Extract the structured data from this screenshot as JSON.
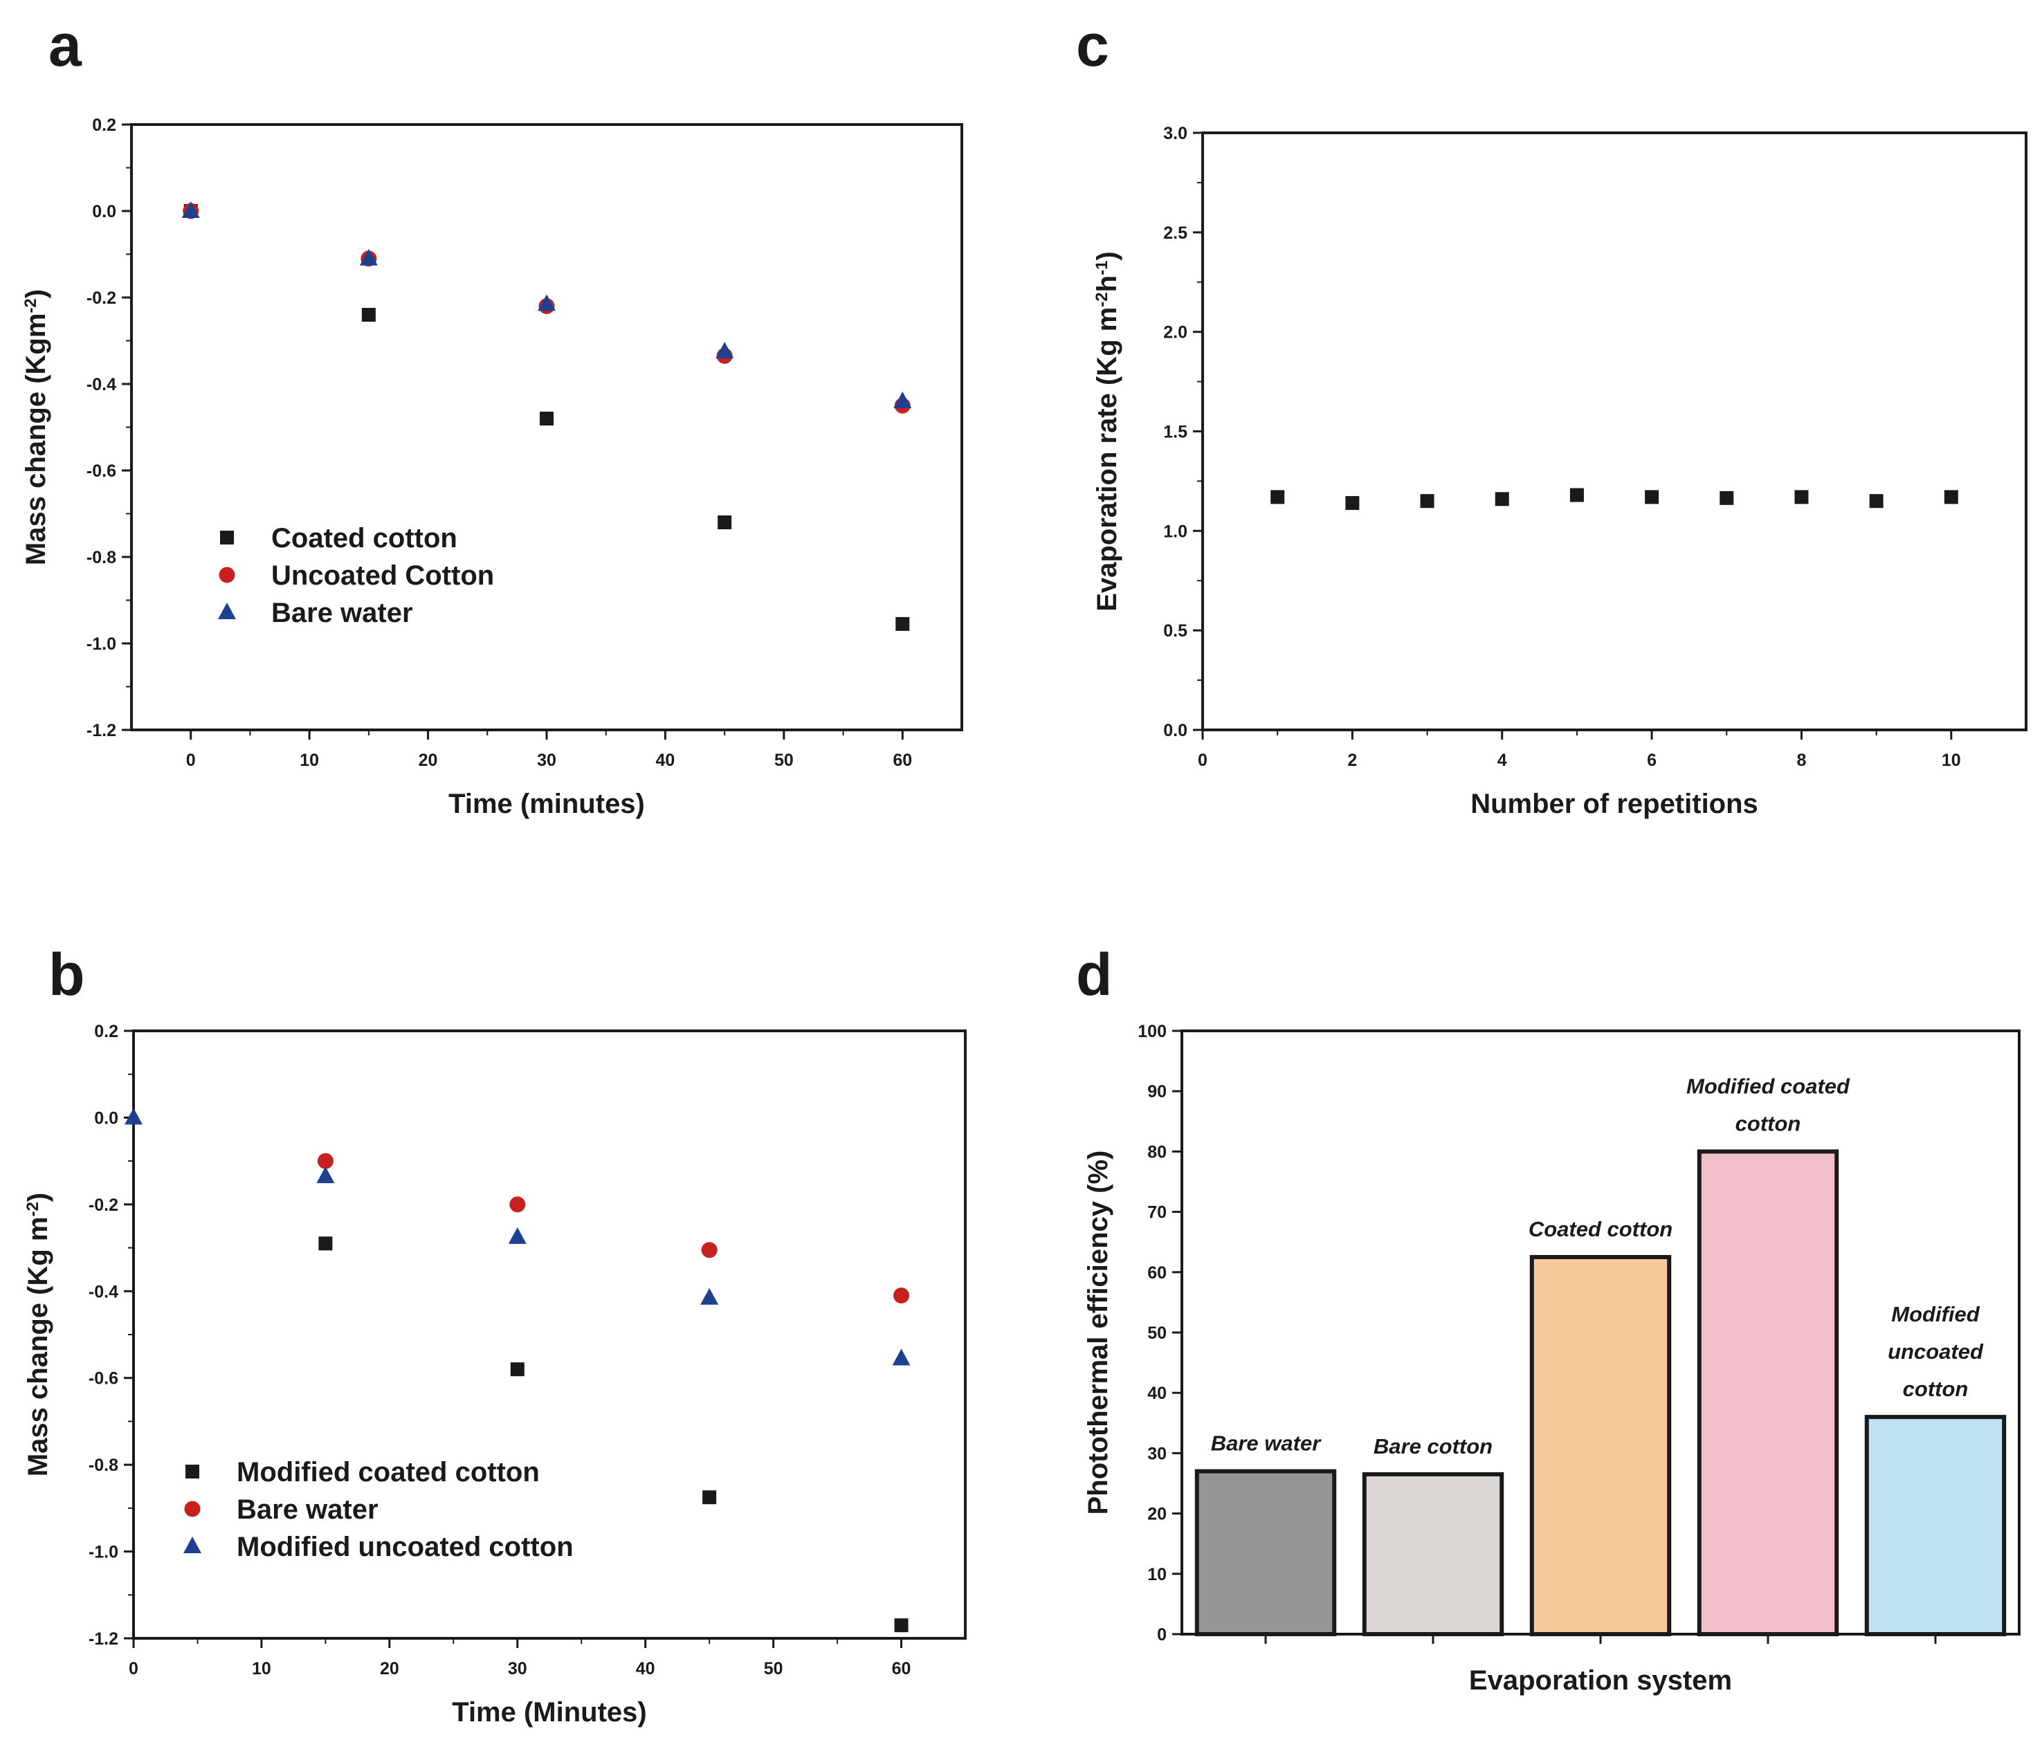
{
  "colors": {
    "black": "#1a1a1a",
    "red": "#c8201e",
    "blue": "#1f3f8f"
  },
  "chart_data": [
    {
      "panel": "a",
      "type": "scatter",
      "xlabel": "Time (minutes)",
      "ylabel": "Mass change (Kgm",
      "ylabel_sup": "-2",
      "ylabel_end": ")",
      "xlim": [
        -5,
        65
      ],
      "ylim": [
        -1.2,
        0.2
      ],
      "xticks": [
        0,
        10,
        20,
        30,
        40,
        50,
        60
      ],
      "yticks": [
        0.2,
        0.0,
        -0.2,
        -0.4,
        -0.6,
        -0.8,
        -1.0,
        -1.2
      ],
      "ytick_labels": [
        "0.2",
        "0.0",
        "-0.2",
        "-0.4",
        "-0.6",
        "-0.8",
        "-1.0",
        "-1.2"
      ],
      "legend_position": "lower-left",
      "series": [
        {
          "name": "Coated cotton",
          "marker": "square",
          "color": "#1a1a1a",
          "x": [
            0,
            15,
            30,
            45,
            60
          ],
          "y": [
            0.0,
            -0.24,
            -0.48,
            -0.72,
            -0.955
          ]
        },
        {
          "name": "Uncoated Cotton",
          "marker": "circle",
          "color": "#c8201e",
          "x": [
            0,
            15,
            30,
            45,
            60
          ],
          "y": [
            0.0,
            -0.11,
            -0.22,
            -0.335,
            -0.45
          ]
        },
        {
          "name": "Bare water",
          "marker": "triangle",
          "color": "#1f3f8f",
          "x": [
            0,
            15,
            30,
            45,
            60
          ],
          "y": [
            0.0,
            -0.11,
            -0.215,
            -0.325,
            -0.44
          ]
        }
      ]
    },
    {
      "panel": "b",
      "type": "scatter",
      "xlabel": "Time (Minutes)",
      "ylabel": "Mass change (Kg m",
      "ylabel_sup": "-2",
      "ylabel_end": ")",
      "xlim": [
        0,
        65
      ],
      "ylim": [
        -1.2,
        0.2
      ],
      "xticks": [
        0,
        10,
        20,
        30,
        40,
        50,
        60
      ],
      "yticks": [
        0.2,
        0.0,
        -0.2,
        -0.4,
        -0.6,
        -0.8,
        -1.0,
        -1.2
      ],
      "ytick_labels": [
        "0.2",
        "0.0",
        "-0.2",
        "-0.4",
        "-0.6",
        "-0.8",
        "-1.0",
        "-1.2"
      ],
      "legend_position": "lower-left",
      "series": [
        {
          "name": "Modified coated cotton",
          "marker": "square",
          "color": "#1a1a1a",
          "x": [
            15,
            30,
            45,
            60
          ],
          "y": [
            -0.29,
            -0.58,
            -0.875,
            -1.17
          ]
        },
        {
          "name": "Bare water",
          "marker": "circle",
          "color": "#c8201e",
          "x": [
            15,
            30,
            45,
            60
          ],
          "y": [
            -0.1,
            -0.2,
            -0.305,
            -0.41
          ]
        },
        {
          "name": "Modified uncoated cotton",
          "marker": "triangle",
          "color": "#1f3f8f",
          "x": [
            0,
            15,
            30,
            45,
            60
          ],
          "y": [
            0.0,
            -0.135,
            -0.275,
            -0.415,
            -0.555
          ]
        }
      ]
    },
    {
      "panel": "c",
      "type": "scatter",
      "xlabel": "Number of repetitions",
      "ylabel": "Evaporation rate (Kg m",
      "ylabel_sup": "-2",
      "ylabel_mid": "h",
      "ylabel_sup2": "-1",
      "ylabel_end": ")",
      "xlim": [
        0,
        11
      ],
      "ylim": [
        0.0,
        3.0
      ],
      "xticks": [
        0,
        2,
        4,
        6,
        8,
        10
      ],
      "yticks": [
        0.0,
        0.5,
        1.0,
        1.5,
        2.0,
        2.5,
        3.0
      ],
      "ytick_labels": [
        "0.0",
        "0.5",
        "1.0",
        "1.5",
        "2.0",
        "2.5",
        "3.0"
      ],
      "series": [
        {
          "name": "Evaporation rate",
          "marker": "square",
          "color": "#1a1a1a",
          "x": [
            1,
            2,
            3,
            4,
            5,
            6,
            7,
            8,
            9,
            10
          ],
          "y": [
            1.17,
            1.14,
            1.15,
            1.16,
            1.18,
            1.17,
            1.165,
            1.17,
            1.15,
            1.17
          ]
        }
      ]
    },
    {
      "panel": "d",
      "type": "bar",
      "xlabel": "Evaporation system",
      "ylabel": "Photothermal efficiency (%)",
      "ylim": [
        0,
        100
      ],
      "yticks": [
        0,
        10,
        20,
        30,
        40,
        50,
        60,
        70,
        80,
        90,
        100
      ],
      "categories": [
        "Bare water",
        "Bare cotton",
        "Coated cotton",
        "Modified coated cotton",
        "Modified uncoated cotton"
      ],
      "category_label_lines": [
        [
          "Bare water"
        ],
        [
          "Bare cotton"
        ],
        [
          "Coated cotton"
        ],
        [
          "Modified coated",
          "cotton"
        ],
        [
          "Modified",
          "uncoated",
          "cotton"
        ]
      ],
      "values": [
        27,
        26.5,
        62.5,
        80,
        36
      ],
      "bar_colors": [
        "#959595",
        "#dcd7d5",
        "#f6c99d",
        "#f2bfcb",
        "#bfe2f5"
      ]
    }
  ]
}
